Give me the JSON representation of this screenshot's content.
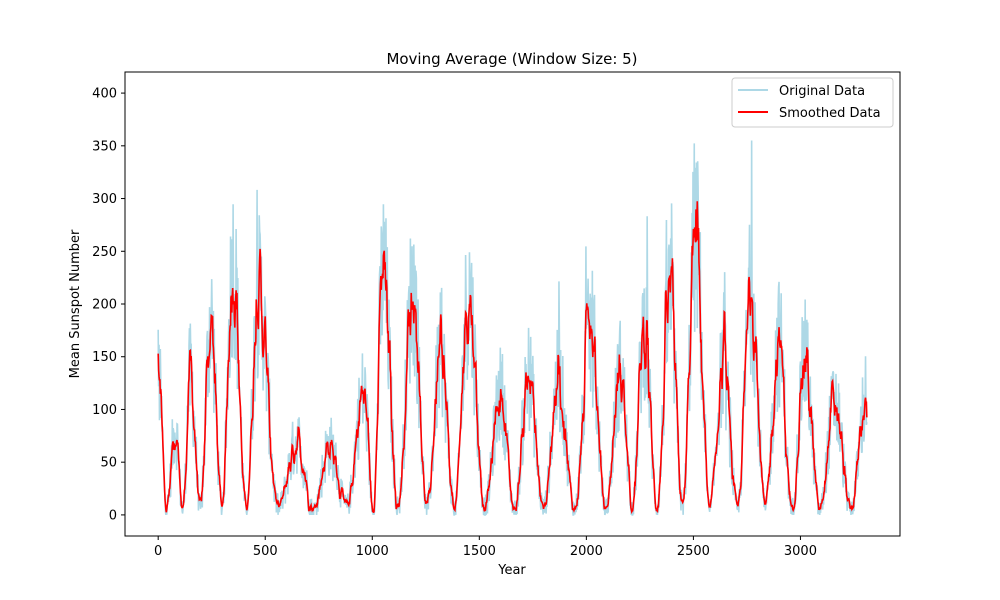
{
  "chart_data": {
    "type": "line",
    "title": "Moving Average (Window Size: 5)",
    "xlabel": "Year",
    "ylabel": "Mean Sunspot Number",
    "xlim": [
      -155,
      3465
    ],
    "ylim": [
      -20,
      420
    ],
    "x_ticks": [
      0,
      500,
      1000,
      1500,
      2000,
      2500,
      3000
    ],
    "y_ticks": [
      0,
      50,
      100,
      150,
      200,
      250,
      300,
      350,
      400
    ],
    "grid": false,
    "legend_position": "top-right",
    "x_range": [
      0,
      3310
    ],
    "cycle_peaks": [
      [
        0,
        160
      ],
      [
        80,
        100
      ],
      [
        150,
        160
      ],
      [
        245,
        225
      ],
      [
        350,
        290
      ],
      [
        470,
        255
      ],
      [
        650,
        85
      ],
      [
        800,
        80
      ],
      [
        960,
        140
      ],
      [
        1050,
        280
      ],
      [
        1190,
        260
      ],
      [
        1320,
        185
      ],
      [
        1450,
        255
      ],
      [
        1600,
        140
      ],
      [
        1730,
        160
      ],
      [
        1870,
        155
      ],
      [
        2020,
        210
      ],
      [
        2160,
        165
      ],
      [
        2270,
        215
      ],
      [
        2390,
        250
      ],
      [
        2510,
        325
      ],
      [
        2640,
        170
      ],
      [
        2770,
        255
      ],
      [
        2900,
        200
      ],
      [
        3020,
        180
      ],
      [
        3160,
        130
      ],
      [
        3310,
        140
      ]
    ],
    "series": [
      {
        "name": "Original Data",
        "color": "#add8e6"
      },
      {
        "name": "Smoothed Data",
        "color": "#ff0000"
      }
    ]
  }
}
